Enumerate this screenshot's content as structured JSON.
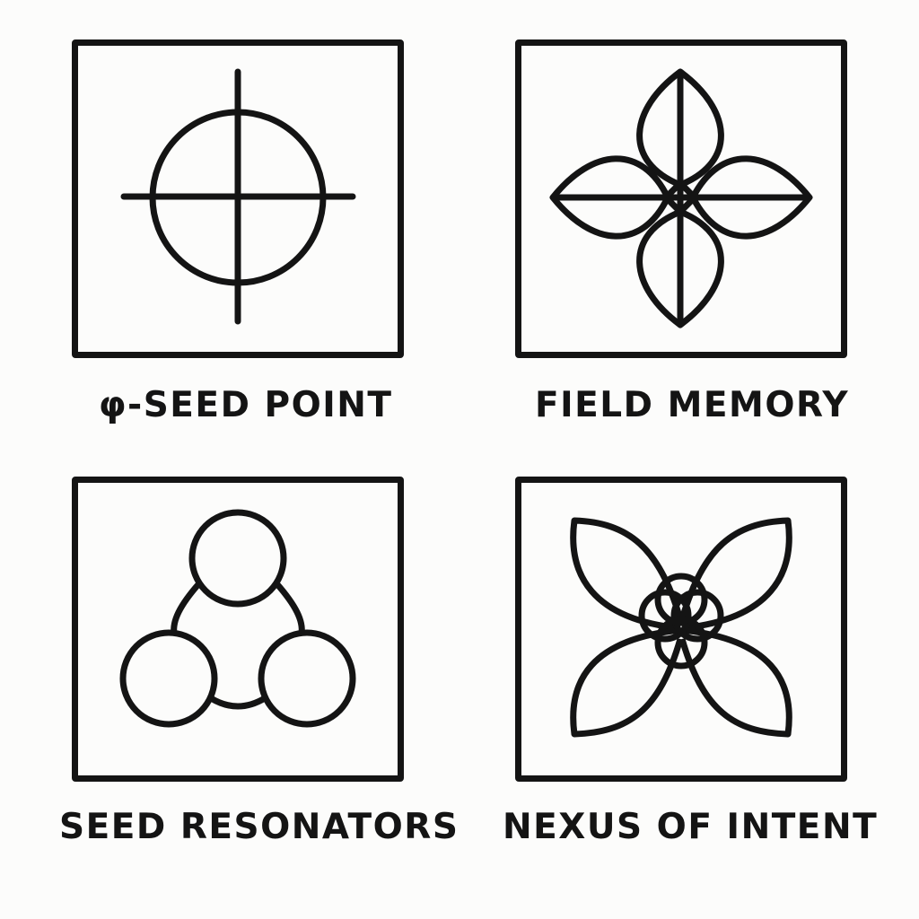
{
  "panels": [
    {
      "label": "φ-SEED POINT",
      "icon": "circle-crosshair-icon"
    },
    {
      "label": "FIELD MEMORY",
      "icon": "four-leaf-cross-icon"
    },
    {
      "label": "SEED RESONATORS",
      "icon": "three-circle-resonator-icon"
    },
    {
      "label": "NEXUS OF INTENT",
      "icon": "four-petal-nexus-icon"
    }
  ],
  "colors": {
    "stroke": "#141414",
    "background": "#fcfcfb"
  }
}
